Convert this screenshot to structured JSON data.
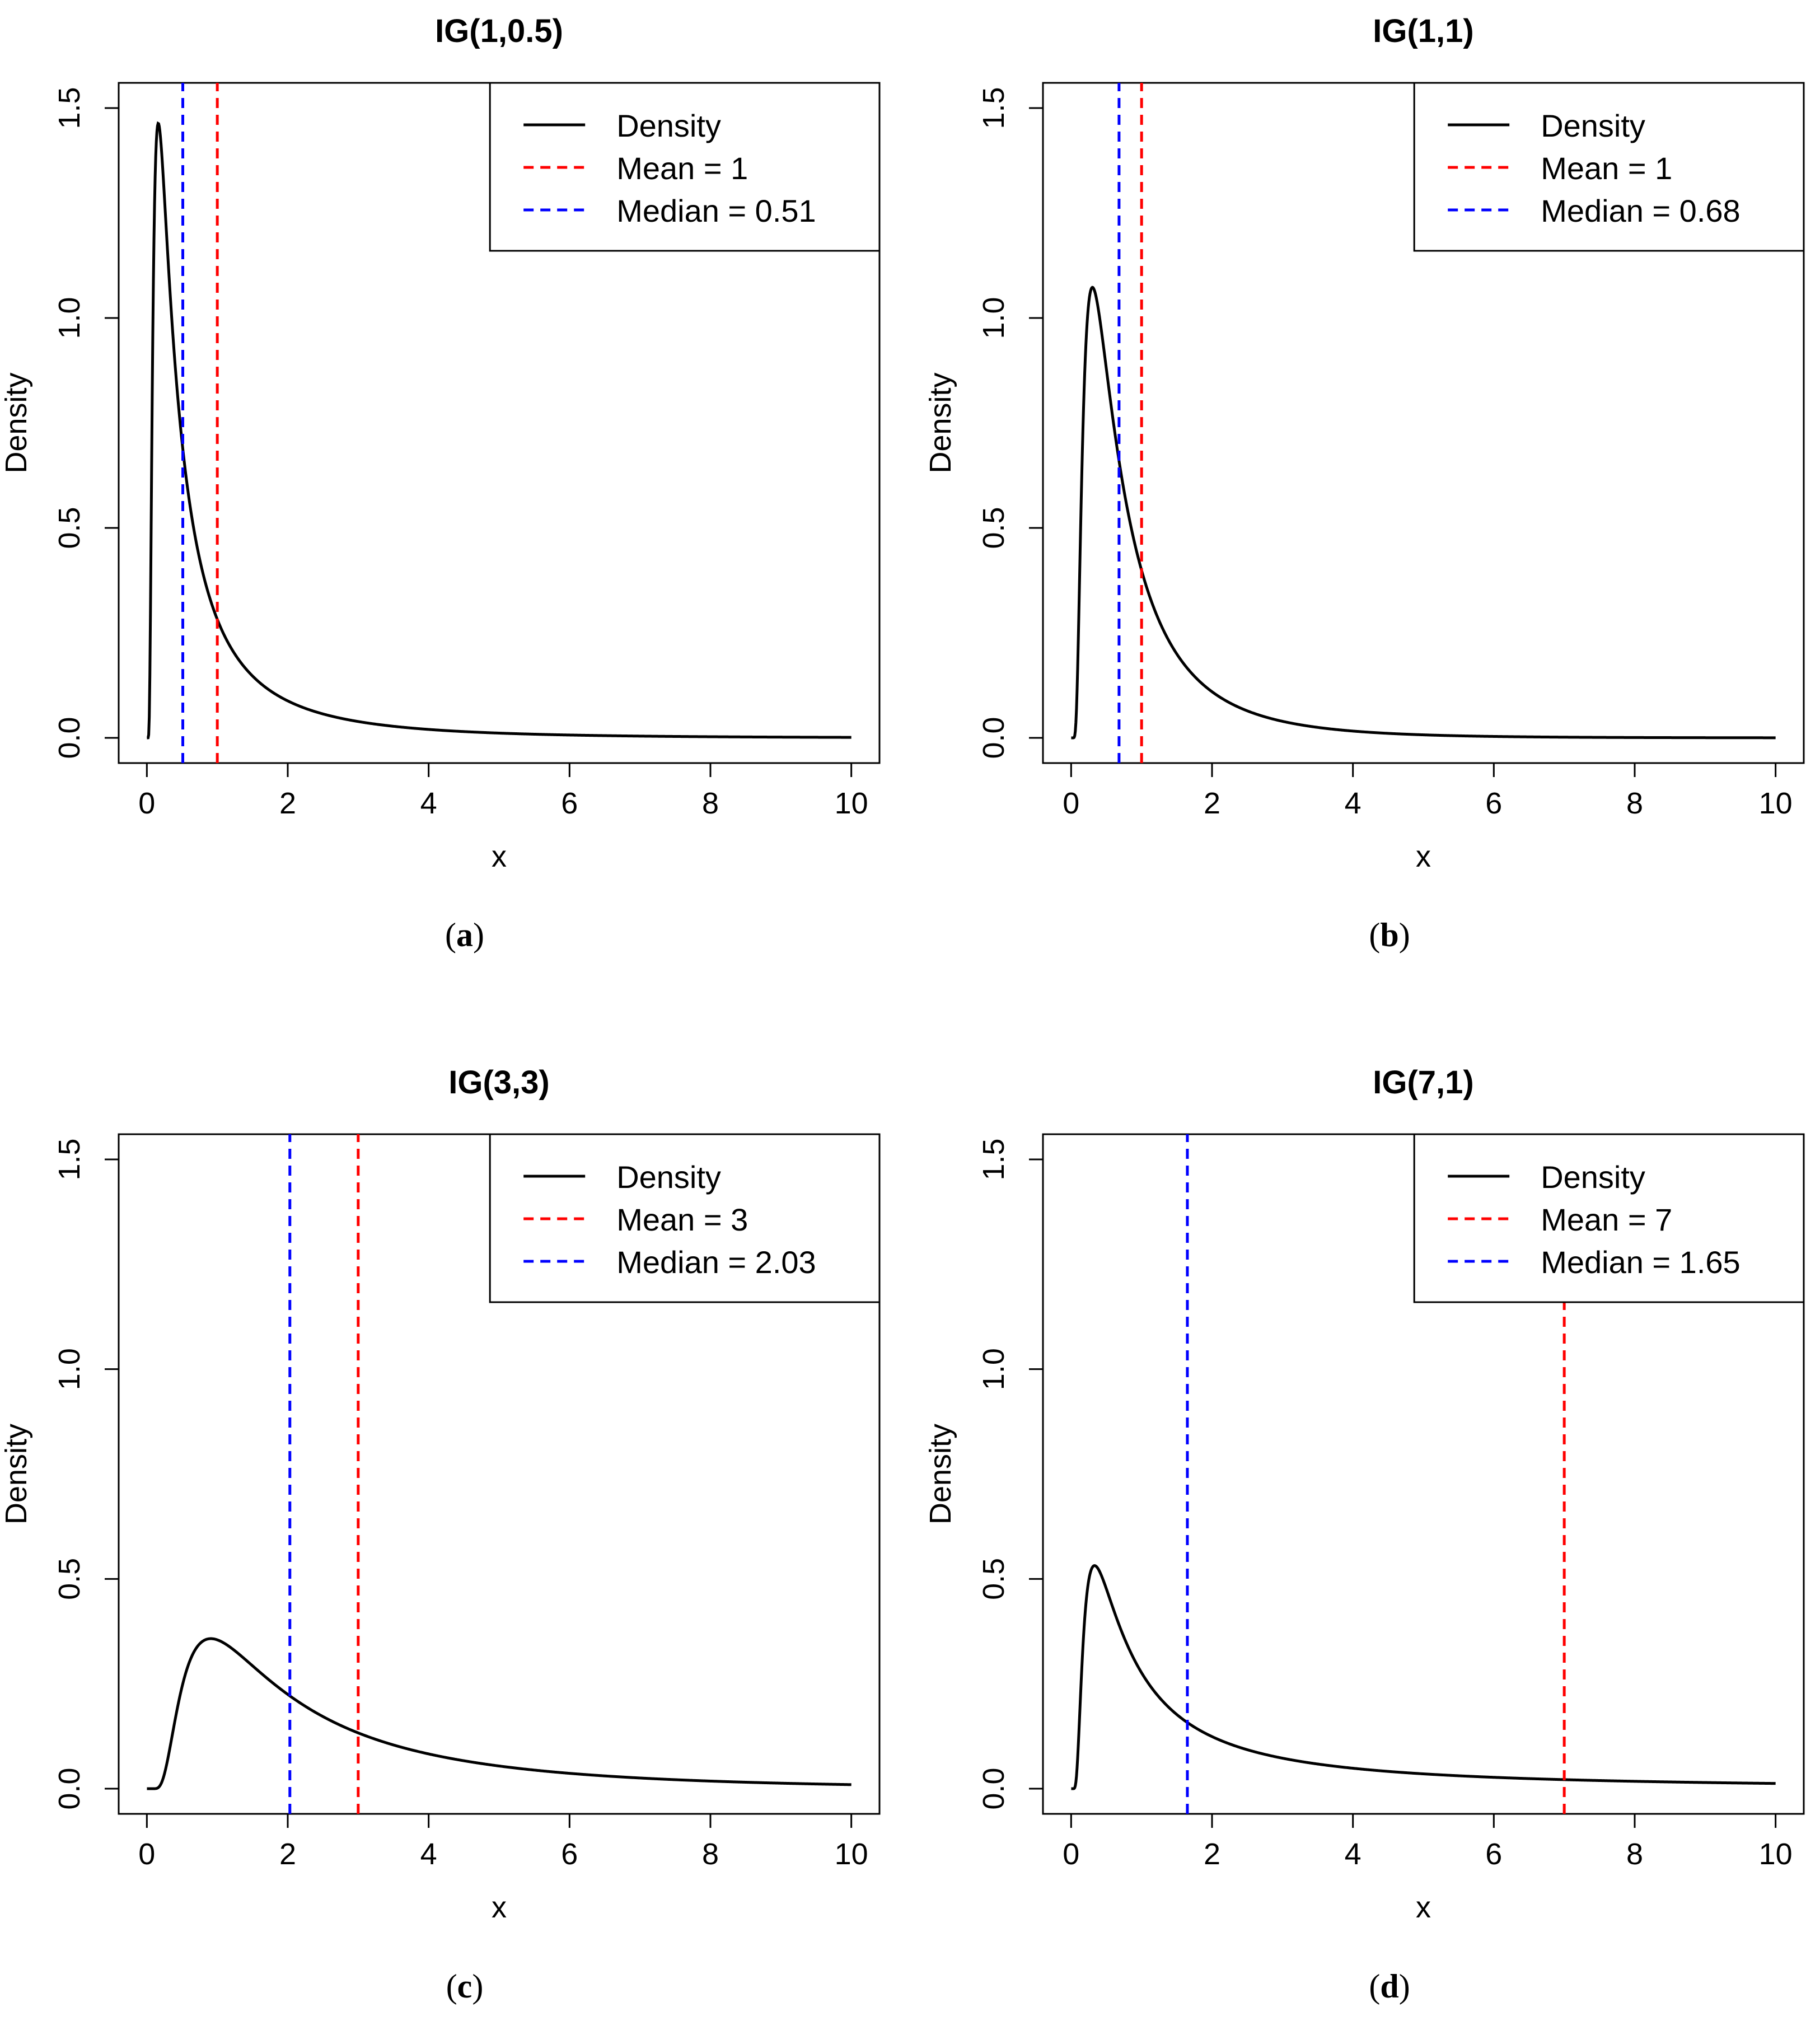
{
  "chart_data": [
    {
      "type": "line",
      "panel": "a",
      "title": "IG(1,0.5)",
      "caption_letter": "a",
      "xlabel": "x",
      "ylabel": "Density",
      "xlim": [
        0,
        10
      ],
      "ylim": [
        0,
        1.5
      ],
      "xticks": [
        "0",
        "2",
        "4",
        "6",
        "8",
        "10"
      ],
      "yticks": [
        "0.0",
        "0.5",
        "1.0",
        "1.5"
      ],
      "distribution": {
        "family": "inverse-gaussian",
        "mu": 1,
        "lambda": 0.5
      },
      "series": [
        {
          "name": "Density",
          "color": "#000000",
          "style": "solid"
        },
        {
          "name": "Mean = 1",
          "color": "#ff0000",
          "style": "dashed",
          "x": 1
        },
        {
          "name": "Median = 0.51",
          "color": "#0000ff",
          "style": "dashed",
          "x": 0.51
        }
      ],
      "legend": [
        "Density",
        "Mean = 1",
        "Median = 0.51"
      ],
      "legend_position": "top-right"
    },
    {
      "type": "line",
      "panel": "b",
      "title": "IG(1,1)",
      "caption_letter": "b",
      "xlabel": "x",
      "ylabel": "Density",
      "xlim": [
        0,
        10
      ],
      "ylim": [
        0,
        1.5
      ],
      "xticks": [
        "0",
        "2",
        "4",
        "6",
        "8",
        "10"
      ],
      "yticks": [
        "0.0",
        "0.5",
        "1.0",
        "1.5"
      ],
      "distribution": {
        "family": "inverse-gaussian",
        "mu": 1,
        "lambda": 1
      },
      "series": [
        {
          "name": "Density",
          "color": "#000000",
          "style": "solid"
        },
        {
          "name": "Mean = 1",
          "color": "#ff0000",
          "style": "dashed",
          "x": 1
        },
        {
          "name": "Median = 0.68",
          "color": "#0000ff",
          "style": "dashed",
          "x": 0.68
        }
      ],
      "legend": [
        "Density",
        "Mean = 1",
        "Median = 0.68"
      ],
      "legend_position": "top-right"
    },
    {
      "type": "line",
      "panel": "c",
      "title": "IG(3,3)",
      "caption_letter": "c",
      "xlabel": "x",
      "ylabel": "Density",
      "xlim": [
        0,
        10
      ],
      "ylim": [
        0,
        1.5
      ],
      "xticks": [
        "0",
        "2",
        "4",
        "6",
        "8",
        "10"
      ],
      "yticks": [
        "0.0",
        "0.5",
        "1.0",
        "1.5"
      ],
      "distribution": {
        "family": "inverse-gaussian",
        "mu": 3,
        "lambda": 3
      },
      "series": [
        {
          "name": "Density",
          "color": "#000000",
          "style": "solid"
        },
        {
          "name": "Mean = 3",
          "color": "#ff0000",
          "style": "dashed",
          "x": 3
        },
        {
          "name": "Median = 2.03",
          "color": "#0000ff",
          "style": "dashed",
          "x": 2.03
        }
      ],
      "legend": [
        "Density",
        "Mean = 3",
        "Median = 2.03"
      ],
      "legend_position": "top-right"
    },
    {
      "type": "line",
      "panel": "d",
      "title": "IG(7,1)",
      "caption_letter": "d",
      "xlabel": "x",
      "ylabel": "Density",
      "xlim": [
        0,
        10
      ],
      "ylim": [
        0,
        1.5
      ],
      "xticks": [
        "0",
        "2",
        "4",
        "6",
        "8",
        "10"
      ],
      "yticks": [
        "0.0",
        "0.5",
        "1.0",
        "1.5"
      ],
      "distribution": {
        "family": "inverse-gaussian",
        "mu": 7,
        "lambda": 1
      },
      "series": [
        {
          "name": "Density",
          "color": "#000000",
          "style": "solid"
        },
        {
          "name": "Mean = 7",
          "color": "#ff0000",
          "style": "dashed",
          "x": 7
        },
        {
          "name": "Median = 1.65",
          "color": "#0000ff",
          "style": "dashed",
          "x": 1.65
        }
      ],
      "legend": [
        "Density",
        "Mean = 7",
        "Median = 1.65"
      ],
      "legend_position": "top-right"
    }
  ]
}
